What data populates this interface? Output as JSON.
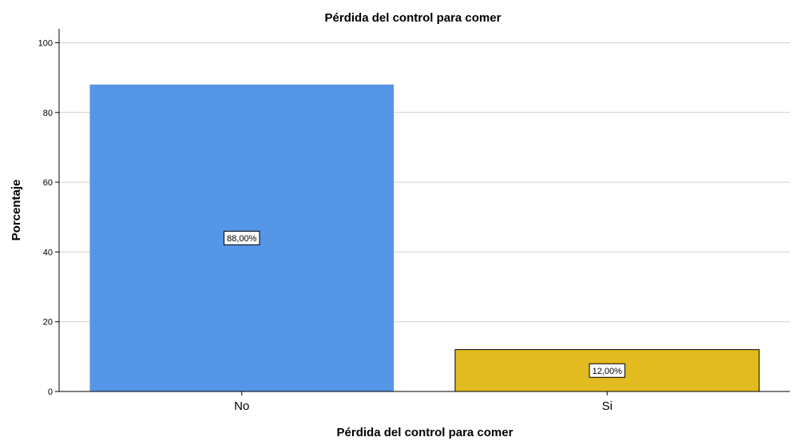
{
  "chart_data": {
    "type": "bar",
    "title": "Pérdida del control para comer",
    "xlabel": "Pérdida del control para comer",
    "ylabel": "Porcentaje",
    "categories": [
      "No",
      "Si"
    ],
    "values": [
      88.0,
      12.0
    ],
    "data_labels": [
      "88,00%",
      "12,00%"
    ],
    "bar_colors": [
      "#5596e6",
      "#e1bb1f"
    ],
    "ylim": [
      0,
      104
    ],
    "yticks": [
      0,
      20,
      40,
      60,
      80,
      100
    ],
    "grid": "horizontal",
    "legend": "none"
  }
}
